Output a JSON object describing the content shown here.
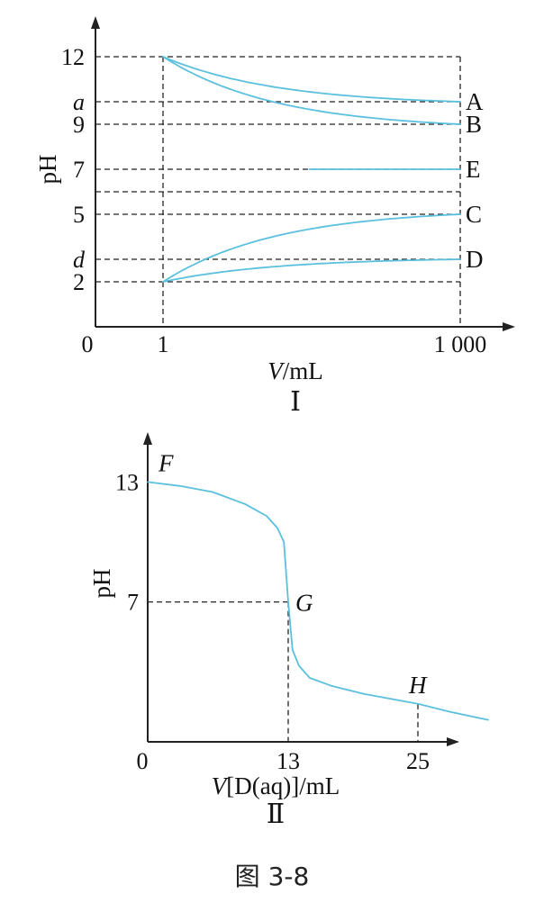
{
  "figure_caption": "图 3-8",
  "accent_color": "#5bc0de",
  "chart_data": [
    {
      "type": "line",
      "panel_label": "Ⅰ",
      "ylabel": "pH",
      "xlabel_var": "V",
      "xlabel_unit": "/mL",
      "x_ticks": [
        "0",
        "1",
        "1 000"
      ],
      "y_ticks": [
        {
          "label": "12",
          "value": 12,
          "italic": false
        },
        {
          "label": "a",
          "value": 10,
          "italic": true
        },
        {
          "label": "9",
          "value": 9,
          "italic": false
        },
        {
          "label": "7",
          "value": 7,
          "italic": false
        },
        {
          "label": "5",
          "value": 5,
          "italic": false
        },
        {
          "label": "d",
          "value": 3,
          "italic": true
        },
        {
          "label": "2",
          "value": 2,
          "italic": false
        }
      ],
      "extra_gridlines_y": [
        6
      ],
      "ylim": [
        0,
        13.5
      ],
      "x_scale": "log",
      "xlim": [
        1,
        1000
      ],
      "series": [
        {
          "name": "A",
          "x": [
            1,
            1000
          ],
          "y": [
            12,
            10
          ],
          "shape": "decay"
        },
        {
          "name": "B",
          "x": [
            1,
            1000
          ],
          "y": [
            12,
            9
          ],
          "shape": "decay"
        },
        {
          "name": "E",
          "x": [
            30,
            1000
          ],
          "y": [
            7,
            7
          ],
          "shape": "flat"
        },
        {
          "name": "C",
          "x": [
            1,
            1000
          ],
          "y": [
            2,
            5
          ],
          "shape": "decay"
        },
        {
          "name": "D",
          "x": [
            1,
            1000
          ],
          "y": [
            2,
            3
          ],
          "shape": "decay"
        }
      ]
    },
    {
      "type": "line",
      "panel_label": "Ⅱ",
      "ylabel": "pH",
      "xlabel": "V[D(aq)]/mL",
      "x_ticks": [
        "0",
        "13",
        "25"
      ],
      "y_ticks": [
        "13",
        "7"
      ],
      "xlim": [
        0,
        36
      ],
      "ylim": [
        0,
        16
      ],
      "points": [
        {
          "label": "F",
          "x": 0,
          "y": 13
        },
        {
          "label": "G",
          "x": 13,
          "y": 7
        },
        {
          "label": "H",
          "x": 25,
          "y": 1.9
        }
      ],
      "curve": {
        "x": [
          0,
          3,
          6,
          9,
          11,
          12,
          12.6,
          13,
          13.4,
          14,
          15,
          17,
          20,
          23,
          25,
          28,
          31.5
        ],
        "y": [
          13,
          12.8,
          12.5,
          11.9,
          11.3,
          10.7,
          10.0,
          7.0,
          4.6,
          3.8,
          3.2,
          2.8,
          2.4,
          2.1,
          1.9,
          1.5,
          1.1
        ]
      }
    }
  ]
}
